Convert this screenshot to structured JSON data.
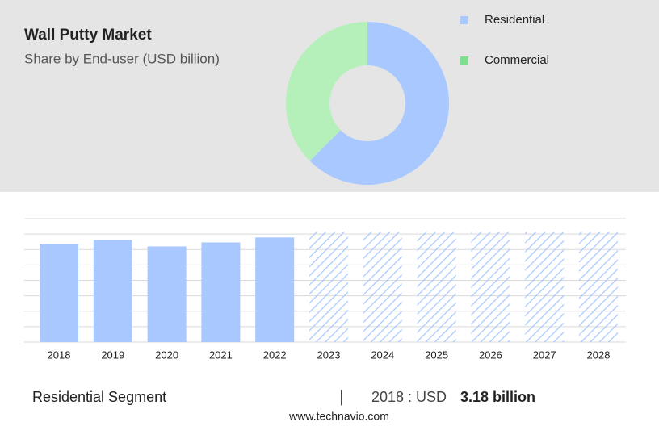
{
  "chart_data": [
    {
      "type": "pie",
      "title": "Wall Putty Market",
      "subtitle": "Share by End-user (USD billion)",
      "categories": [
        "Residential",
        "Commercial"
      ],
      "values": [
        62.5,
        37.5
      ],
      "colors": [
        "#a8c8ff",
        "#b5efb9"
      ],
      "legend_colors": [
        "#a8c8ff",
        "#7fdf8e"
      ],
      "donut": true
    },
    {
      "type": "bar",
      "categories": [
        "2018",
        "2019",
        "2020",
        "2021",
        "2022",
        "2023",
        "2024",
        "2025",
        "2026",
        "2027",
        "2028"
      ],
      "values": [
        3.18,
        3.31,
        3.1,
        3.23,
        3.39,
        3.57,
        3.57,
        3.57,
        3.57,
        3.57,
        3.57
      ],
      "hatched": [
        false,
        false,
        false,
        false,
        false,
        true,
        true,
        true,
        true,
        true,
        true
      ],
      "color": "#a8c8ff",
      "ylim": [
        0,
        4
      ],
      "yticks": [
        0,
        0.5,
        1,
        1.5,
        2,
        2.5,
        3,
        3.5,
        4
      ],
      "grid": true
    }
  ],
  "footer": {
    "segment": "Residential Segment",
    "separator": "|",
    "label": "2018 : USD",
    "value": "3.18 billion",
    "source": "www.technavio.com"
  }
}
